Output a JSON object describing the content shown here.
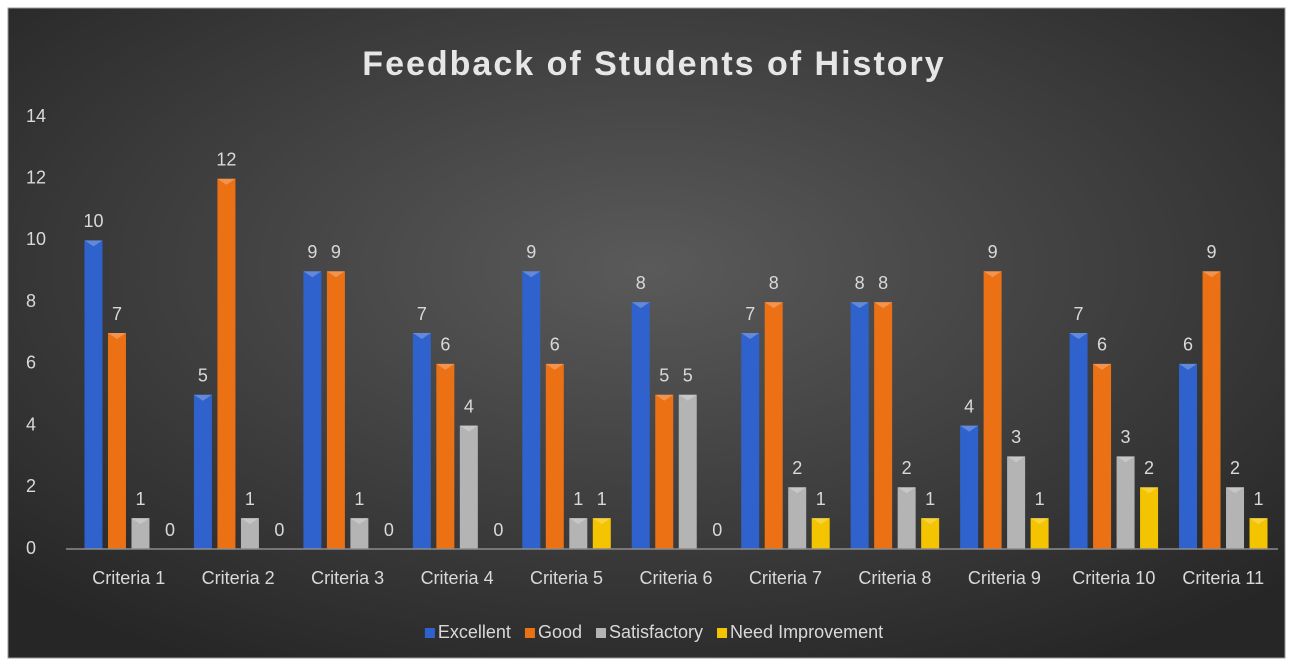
{
  "chart_data": {
    "type": "bar",
    "title": "Feedback of Students of History",
    "categories": [
      "Criteria 1",
      "Criteria 2",
      "Criteria 3",
      "Criteria 4",
      "Criteria 5",
      "Criteria 6",
      "Criteria 7",
      "Criteria 8",
      "Criteria 9",
      "Criteria 10",
      "Criteria 11"
    ],
    "series": [
      {
        "name": "Excellent",
        "color": "#2f62cc",
        "values": [
          10,
          5,
          9,
          7,
          9,
          8,
          7,
          8,
          4,
          7,
          6
        ]
      },
      {
        "name": "Good",
        "color": "#ec7014",
        "values": [
          7,
          12,
          9,
          6,
          6,
          5,
          8,
          8,
          9,
          6,
          9
        ]
      },
      {
        "name": "Satisfactory",
        "color": "#b4b4b4",
        "values": [
          1,
          1,
          1,
          4,
          1,
          5,
          2,
          2,
          3,
          3,
          2
        ]
      },
      {
        "name": "Need Improvement",
        "color": "#f5c400",
        "values": [
          0,
          0,
          0,
          0,
          1,
          0,
          1,
          1,
          1,
          2,
          1
        ]
      }
    ],
    "ylim": [
      0,
      14
    ],
    "yticks": [
      0,
      2,
      4,
      6,
      8,
      10,
      12,
      14
    ],
    "grid": false,
    "legend": "bottom"
  }
}
